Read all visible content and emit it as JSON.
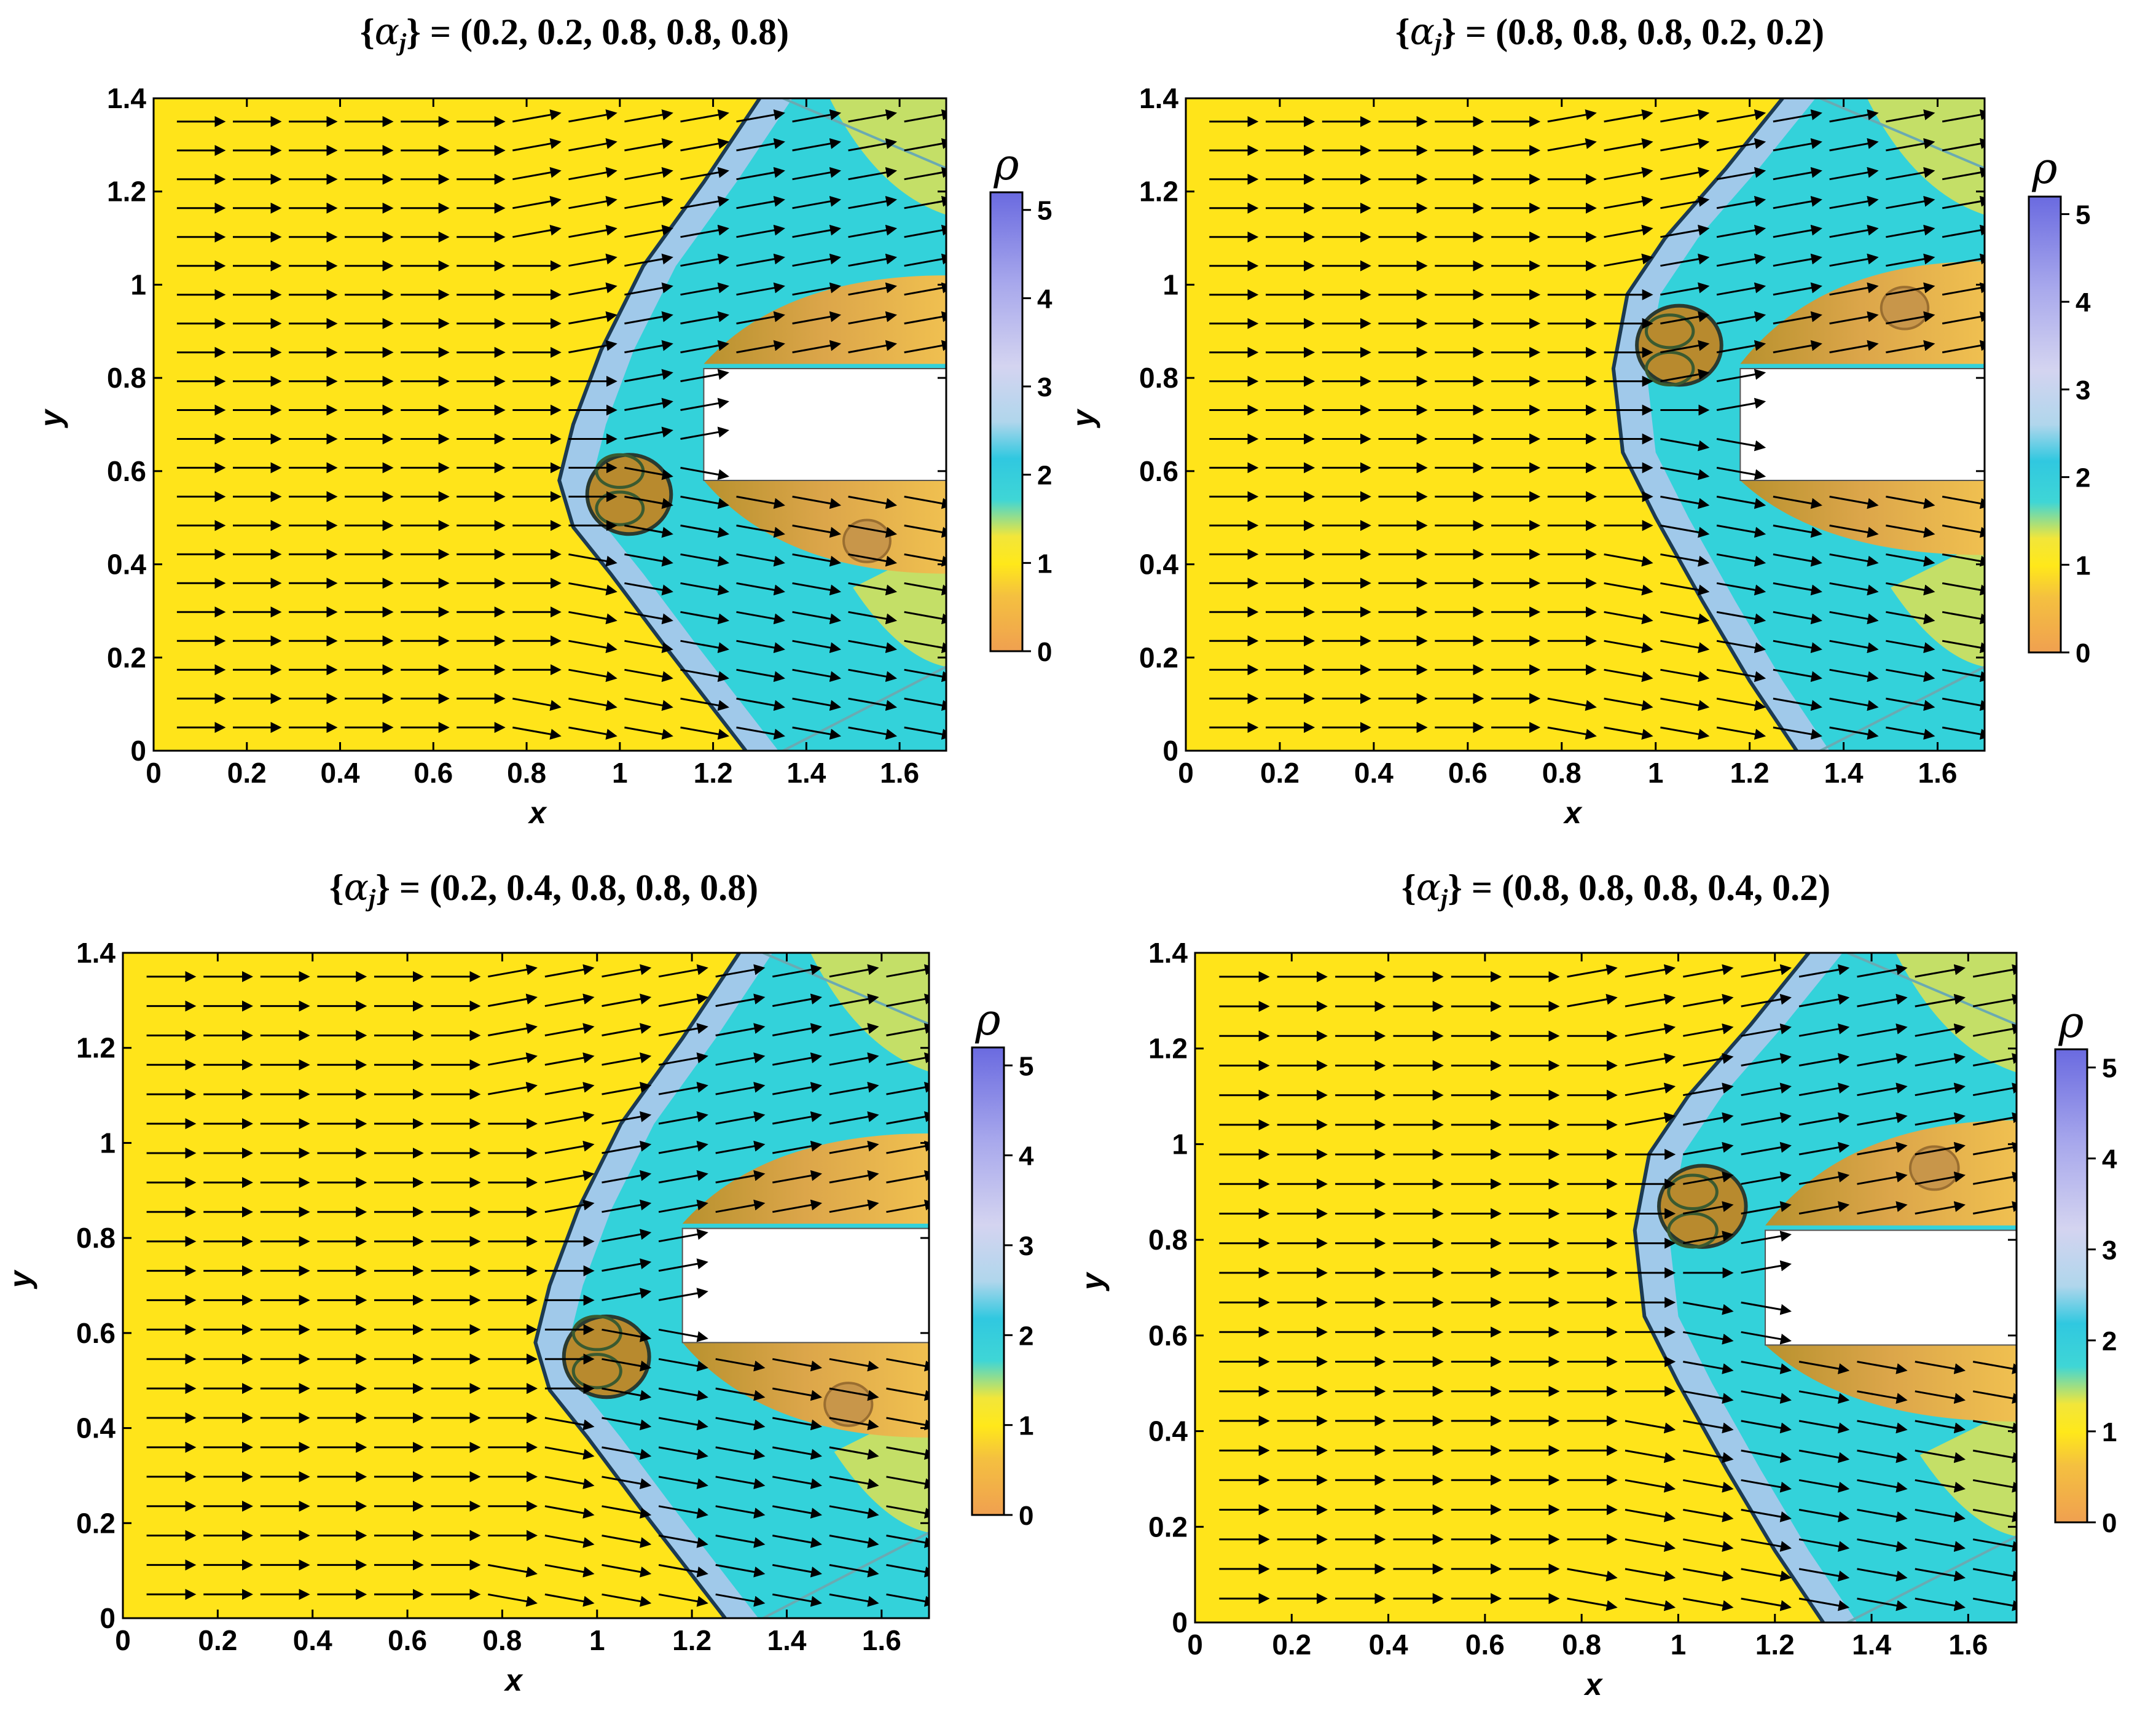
{
  "figure": {
    "colors": {
      "freestream": "#ffe41a",
      "postshock": "#33d2da",
      "high_density": "#c6c6ef",
      "low_density": "#e8a84a",
      "shock_line": "#1c3a52",
      "arrow": "#000000"
    }
  },
  "chart_data": [
    {
      "type": "heatmap",
      "title_prefix": "{",
      "title_symbol": "α",
      "title_sub": "j",
      "title_suffix": "} = (0.2, 0.2, 0.8, 0.8, 0.8)",
      "alphas": [
        0.2,
        0.2,
        0.8,
        0.8,
        0.8
      ],
      "xlabel": "x",
      "ylabel": "y",
      "xlim": [
        0,
        1.7
      ],
      "ylim": [
        0,
        1.4
      ],
      "xticks": [
        "0",
        "0.2",
        "0.4",
        "0.6",
        "0.8",
        "1",
        "1.2",
        "1.4",
        "1.6"
      ],
      "yticks": [
        "0",
        "0.2",
        "0.4",
        "0.6",
        "0.8",
        "1",
        "1.2",
        "1.4"
      ],
      "colorbar": {
        "label": "ρ",
        "ticks": [
          "0",
          "1",
          "2",
          "3",
          "4",
          "5"
        ],
        "range": [
          0,
          5.2
        ]
      },
      "vector_field": "velocity arrows",
      "jet_asymmetry": "lower"
    },
    {
      "type": "heatmap",
      "title_prefix": "{",
      "title_symbol": "α",
      "title_sub": "j",
      "title_suffix": "} = (0.8, 0.8, 0.8, 0.2, 0.2)",
      "alphas": [
        0.8,
        0.8,
        0.8,
        0.2,
        0.2
      ],
      "xlabel": "x",
      "ylabel": "y",
      "xlim": [
        0,
        1.7
      ],
      "ylim": [
        0,
        1.4
      ],
      "xticks": [
        "0",
        "0.2",
        "0.4",
        "0.6",
        "0.8",
        "1",
        "1.2",
        "1.4",
        "1.6"
      ],
      "yticks": [
        "0",
        "0.2",
        "0.4",
        "0.6",
        "0.8",
        "1",
        "1.2",
        "1.4"
      ],
      "colorbar": {
        "label": "ρ",
        "ticks": [
          "0",
          "1",
          "2",
          "3",
          "4",
          "5"
        ],
        "range": [
          0,
          5.2
        ]
      },
      "vector_field": "velocity arrows",
      "jet_asymmetry": "upper"
    },
    {
      "type": "heatmap",
      "title_prefix": "{",
      "title_symbol": "α",
      "title_sub": "j",
      "title_suffix": "} = (0.2, 0.4, 0.8, 0.8, 0.8)",
      "alphas": [
        0.2,
        0.4,
        0.8,
        0.8,
        0.8
      ],
      "xlabel": "x",
      "ylabel": "y",
      "xlim": [
        0,
        1.7
      ],
      "ylim": [
        0,
        1.4
      ],
      "xticks": [
        "0",
        "0.2",
        "0.4",
        "0.6",
        "0.8",
        "1",
        "1.2",
        "1.4",
        "1.6"
      ],
      "yticks": [
        "0",
        "0.2",
        "0.4",
        "0.6",
        "0.8",
        "1",
        "1.2",
        "1.4"
      ],
      "colorbar": {
        "label": "ρ",
        "ticks": [
          "0",
          "1",
          "2",
          "3",
          "4",
          "5"
        ],
        "range": [
          0,
          5.2
        ]
      },
      "vector_field": "velocity arrows",
      "jet_asymmetry": "lower"
    },
    {
      "type": "heatmap",
      "title_prefix": "{",
      "title_symbol": "α",
      "title_sub": "j",
      "title_suffix": "} = (0.8, 0.8, 0.8, 0.4, 0.2)",
      "alphas": [
        0.8,
        0.8,
        0.8,
        0.4,
        0.2
      ],
      "xlabel": "x",
      "ylabel": "y",
      "xlim": [
        0,
        1.7
      ],
      "ylim": [
        0,
        1.4
      ],
      "xticks": [
        "0",
        "0.2",
        "0.4",
        "0.6",
        "0.8",
        "1",
        "1.2",
        "1.4",
        "1.6"
      ],
      "yticks": [
        "0",
        "0.2",
        "0.4",
        "0.6",
        "0.8",
        "1",
        "1.2",
        "1.4"
      ],
      "colorbar": {
        "label": "ρ",
        "ticks": [
          "0",
          "1",
          "2",
          "3",
          "4",
          "5"
        ],
        "range": [
          0,
          5.2
        ]
      },
      "vector_field": "velocity arrows",
      "jet_asymmetry": "upper"
    }
  ]
}
